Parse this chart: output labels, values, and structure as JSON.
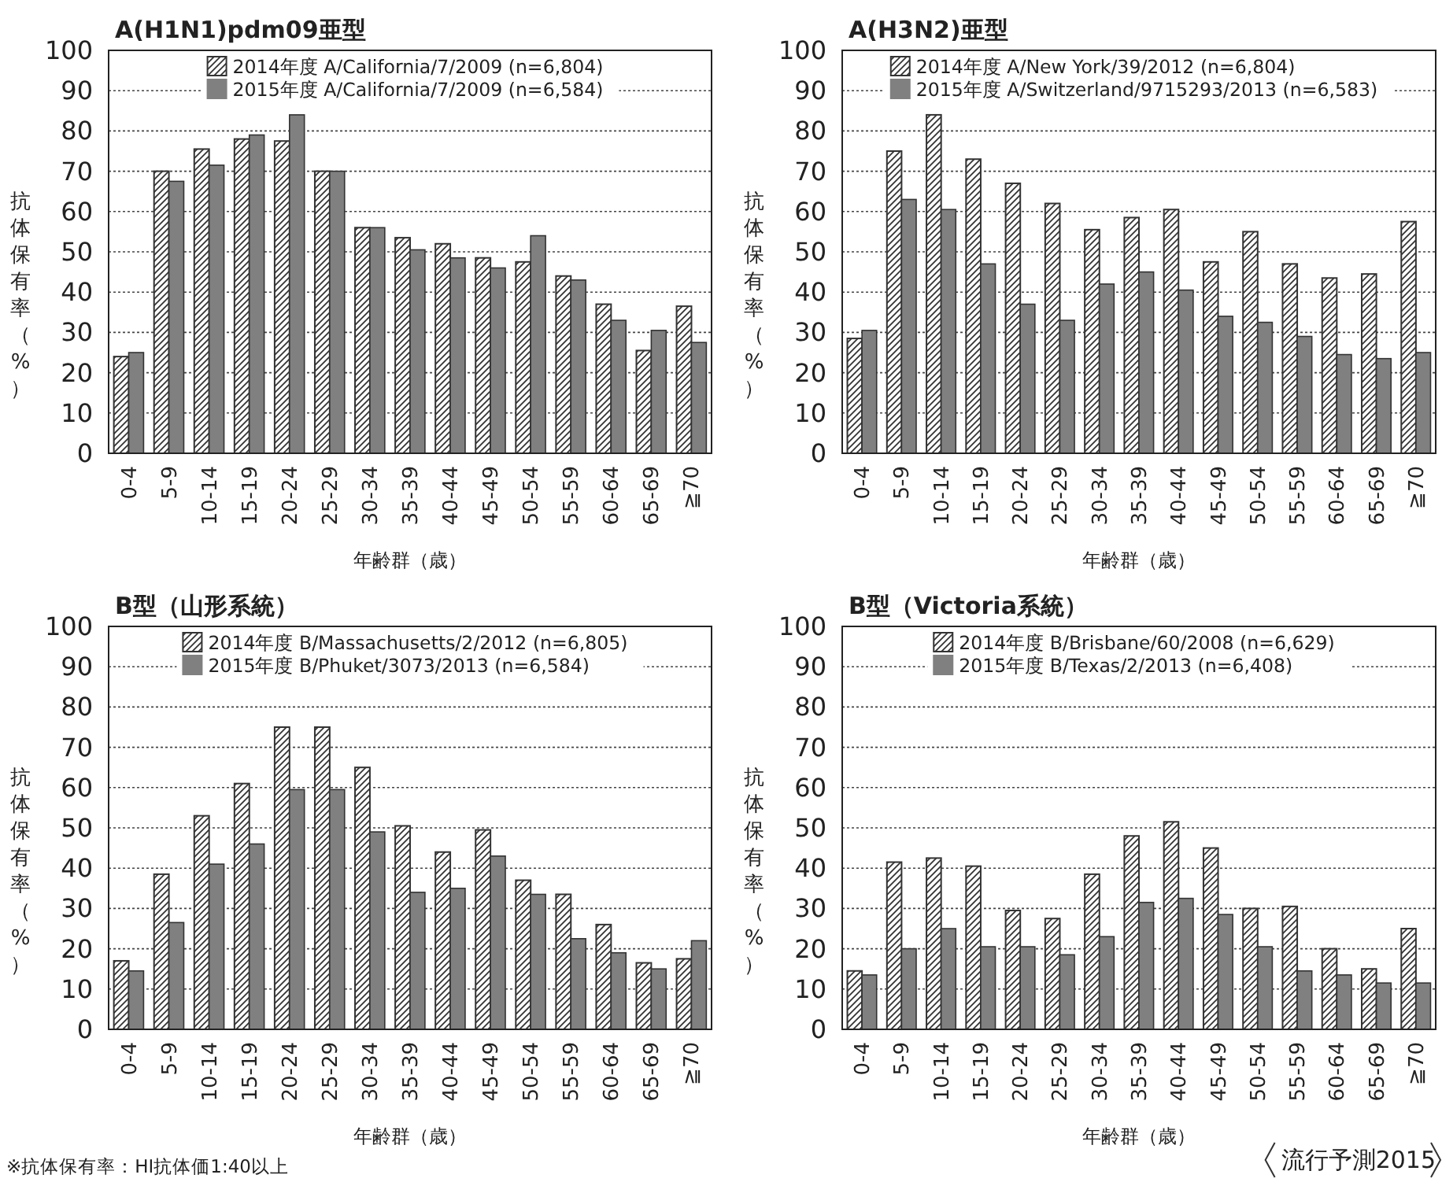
{
  "chart_data": [
    {
      "type": "bar",
      "title": "A(H1N1)pdm09亜型",
      "xlabel": "年齢群（歳）",
      "ylabel": "抗体保有率（%）",
      "categories": [
        "0-4",
        "5-9",
        "10-14",
        "15-19",
        "20-24",
        "25-29",
        "30-34",
        "35-39",
        "40-44",
        "45-49",
        "50-54",
        "55-59",
        "60-64",
        "65-69",
        "≧70"
      ],
      "series": [
        {
          "name": "2014年度 A/California/7/2009 (n=6,804)",
          "color": "#333333",
          "values": [
            24,
            70,
            75.5,
            78,
            77.5,
            70,
            56,
            53.5,
            52,
            48.5,
            47.5,
            44,
            37,
            25.5,
            36.5
          ]
        },
        {
          "name": "2015年度 A/California/7/2009 (n=6,584)",
          "color": "#808080",
          "values": [
            25,
            67.5,
            71.5,
            79,
            84,
            70,
            56,
            50.5,
            48.5,
            46,
            54,
            43,
            33,
            30.5,
            27.5
          ]
        }
      ],
      "ylim": [
        0,
        100
      ],
      "yticks": [
        0,
        10,
        20,
        30,
        40,
        50,
        60,
        70,
        80,
        90,
        100
      ],
      "grid": "y",
      "legend": "top"
    },
    {
      "type": "bar",
      "title": "A(H3N2)亜型",
      "xlabel": "年齢群（歳）",
      "ylabel": "抗体保有率（%）",
      "categories": [
        "0-4",
        "5-9",
        "10-14",
        "15-19",
        "20-24",
        "25-29",
        "30-34",
        "35-39",
        "40-44",
        "45-49",
        "50-54",
        "55-59",
        "60-64",
        "65-69",
        "≧70"
      ],
      "series": [
        {
          "name": "2014年度 A/New York/39/2012 (n=6,804)",
          "color": "#333333",
          "values": [
            28.5,
            75,
            84,
            73,
            67,
            62,
            55.5,
            58.5,
            60.5,
            47.5,
            55,
            47,
            43.5,
            44.5,
            57.5
          ]
        },
        {
          "name": "2015年度 A/Switzerland/9715293/2013 (n=6,583)",
          "color": "#808080",
          "values": [
            30.5,
            63,
            60.5,
            47,
            37,
            33,
            42,
            45,
            40.5,
            34,
            32.5,
            29,
            24.5,
            23.5,
            25
          ]
        }
      ],
      "ylim": [
        0,
        100
      ],
      "yticks": [
        0,
        10,
        20,
        30,
        40,
        50,
        60,
        70,
        80,
        90,
        100
      ],
      "grid": "y",
      "legend": "top"
    },
    {
      "type": "bar",
      "title": "B型（山形系統）",
      "xlabel": "年齢群（歳）",
      "ylabel": "抗体保有率（%）",
      "categories": [
        "0-4",
        "5-9",
        "10-14",
        "15-19",
        "20-24",
        "25-29",
        "30-34",
        "35-39",
        "40-44",
        "45-49",
        "50-54",
        "55-59",
        "60-64",
        "65-69",
        "≧70"
      ],
      "series": [
        {
          "name": "2014年度 B/Massachusetts/2/2012 (n=6,805)",
          "color": "#333333",
          "values": [
            17,
            38.5,
            53,
            61,
            75,
            75,
            65,
            50.5,
            44,
            49.5,
            37,
            33.5,
            26,
            16.5,
            17.5
          ]
        },
        {
          "name": "2015年度 B/Phuket/3073/2013 (n=6,584)",
          "color": "#808080",
          "values": [
            14.5,
            26.5,
            41,
            46,
            59.5,
            59.5,
            49,
            34,
            35,
            43,
            33.5,
            22.5,
            19,
            15,
            22
          ]
        }
      ],
      "ylim": [
        0,
        100
      ],
      "yticks": [
        0,
        10,
        20,
        30,
        40,
        50,
        60,
        70,
        80,
        90,
        100
      ],
      "grid": "y",
      "legend": "top",
      "annotations": [
        "※抗体保有率：HI抗体価1:40以上"
      ]
    },
    {
      "type": "bar",
      "title": "B型（Victoria系統）",
      "xlabel": "年齢群（歳）",
      "ylabel": "抗体保有率（%）",
      "categories": [
        "0-4",
        "5-9",
        "10-14",
        "15-19",
        "20-24",
        "25-29",
        "30-34",
        "35-39",
        "40-44",
        "45-49",
        "50-54",
        "55-59",
        "60-64",
        "65-69",
        "≧70"
      ],
      "series": [
        {
          "name": "2014年度 B/Brisbane/60/2008 (n=6,629)",
          "color": "#333333",
          "values": [
            14.5,
            41.5,
            42.5,
            40.5,
            29.5,
            27.5,
            38.5,
            48,
            51.5,
            45,
            30,
            30.5,
            20,
            15,
            25
          ]
        },
        {
          "name": "2015年度 B/Texas/2/2013 (n=6,408)",
          "color": "#808080",
          "values": [
            13.5,
            20,
            25,
            20.5,
            20.5,
            18.5,
            23,
            31.5,
            32.5,
            28.5,
            20.5,
            14.5,
            13.5,
            11.5,
            11.5
          ]
        }
      ],
      "ylim": [
        0,
        100
      ],
      "yticks": [
        0,
        10,
        20,
        30,
        40,
        50,
        60,
        70,
        80,
        90,
        100
      ],
      "grid": "y",
      "legend": "top",
      "annotations": [
        "流行予測2015"
      ]
    }
  ]
}
